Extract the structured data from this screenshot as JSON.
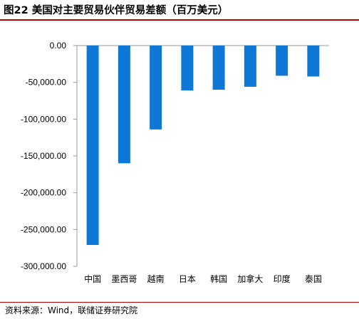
{
  "chart_data": {
    "type": "bar",
    "title": "图22 美国对主要贸易伙伴贸易差额（百万美元）",
    "categories": [
      "中国",
      "墨西哥",
      "越南",
      "日本",
      "韩国",
      "加拿大",
      "印度",
      "泰国"
    ],
    "values": [
      -271000,
      -160000,
      -114000,
      -61000,
      -60000,
      -56000,
      -41000,
      -42000
    ],
    "ylim": [
      -300000,
      0
    ],
    "yticks": [
      0,
      -50000,
      -100000,
      -150000,
      -200000,
      -250000,
      -300000
    ],
    "ytick_labels": [
      "0.00",
      "-50,000.00",
      "-100,000.00",
      "-150,000.00",
      "-200,000.00",
      "-250,000.00",
      "-300,000.00"
    ],
    "xlabel": "",
    "ylabel": "",
    "grid": false,
    "legend": "none",
    "bar_color": "#0f77d6",
    "axis_color": "#9a9a9a"
  },
  "source": "资料来源：Wind，联储证券研究院",
  "colors": {
    "rule": "#c00000"
  }
}
